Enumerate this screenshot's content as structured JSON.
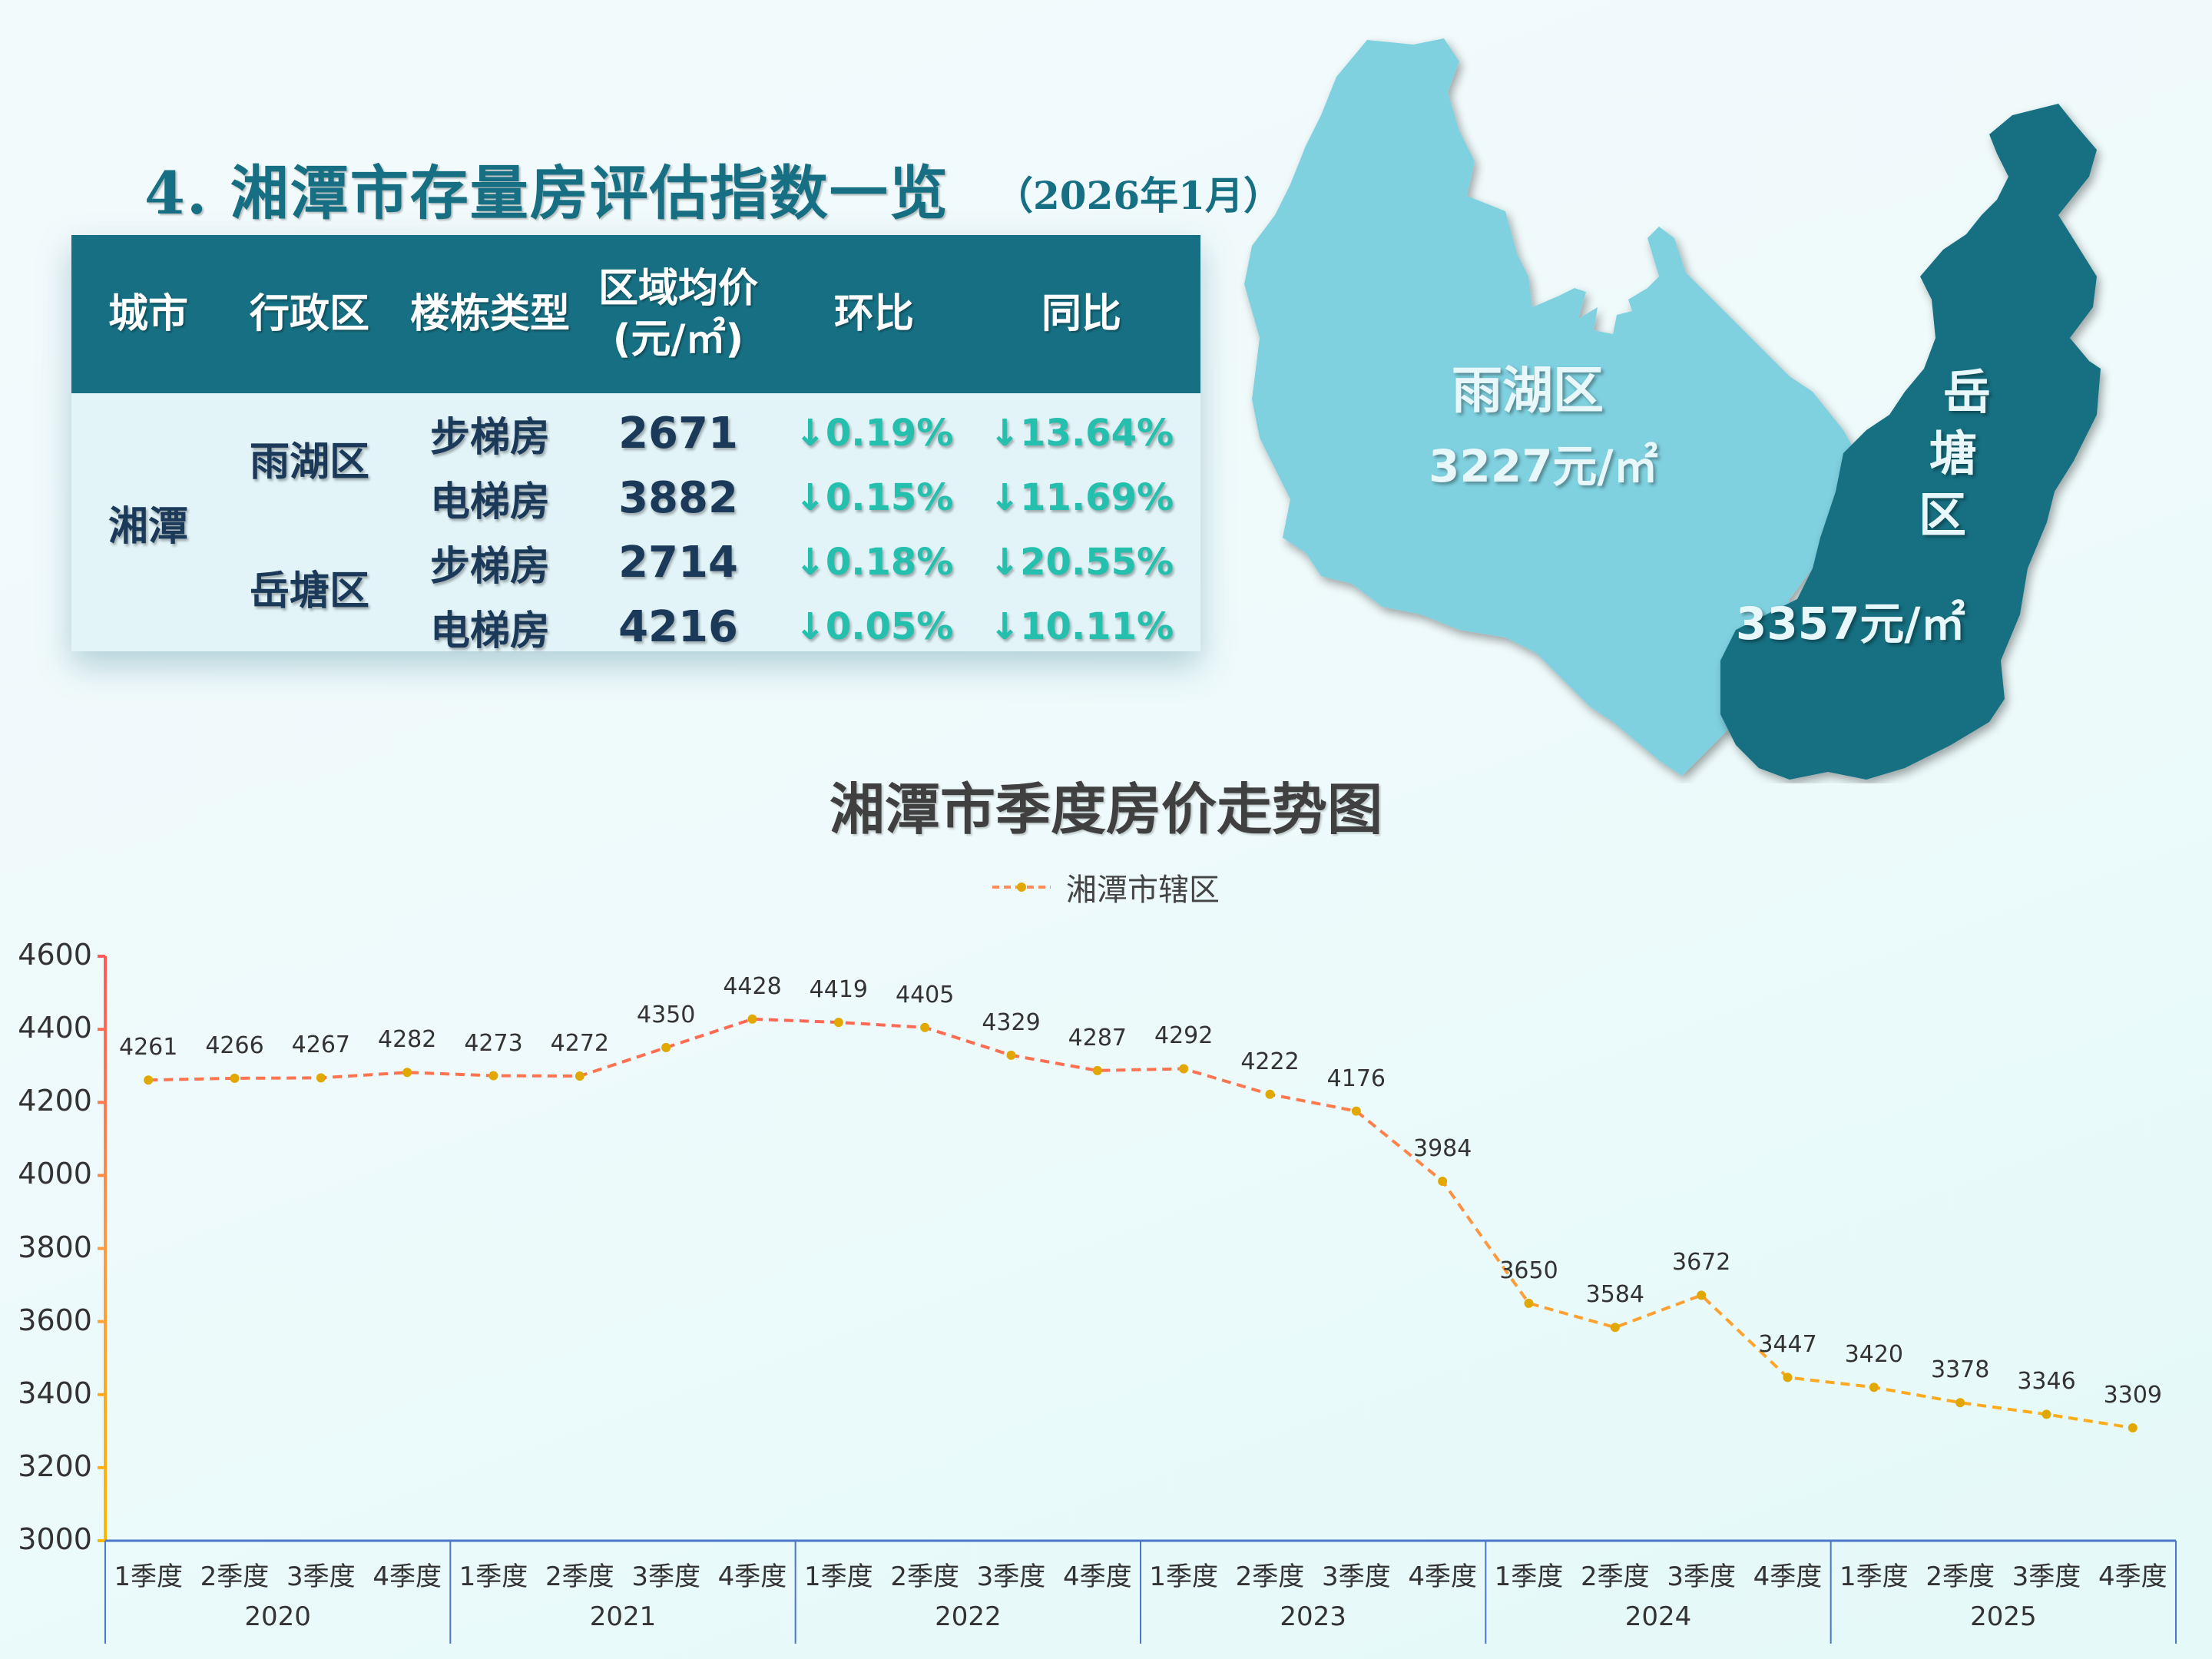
{
  "header": {
    "title": "4. 湘潭市存量房评估指数一览",
    "subtitle": "（2026年1月）"
  },
  "table": {
    "columns": [
      "城市",
      "行政区",
      "楼栋类型",
      "区域均价",
      "(元/㎡)",
      "环比",
      "同比"
    ],
    "city": "湘潭",
    "districts": [
      {
        "name": "雨湖区",
        "rows": [
          {
            "type": "步梯房",
            "price": "2671",
            "mom": "↓0.19%",
            "yoy": "↓13.64%"
          },
          {
            "type": "电梯房",
            "price": "3882",
            "mom": "↓0.15%",
            "yoy": "↓11.69%"
          }
        ]
      },
      {
        "name": "岳塘区",
        "rows": [
          {
            "type": "步梯房",
            "price": "2714",
            "mom": "↓0.18%",
            "yoy": "↓20.55%"
          },
          {
            "type": "电梯房",
            "price": "4216",
            "mom": "↓0.05%",
            "yoy": "↓10.11%"
          }
        ]
      }
    ],
    "colors": {
      "header_bg": "#166f82",
      "body_bg": "#e2f4f8",
      "text": "#1b3a5a",
      "change": "#25bfae"
    }
  },
  "map": {
    "regions": [
      {
        "name": "雨湖区",
        "price": "3227元/㎡",
        "color": "#7fd1e0"
      },
      {
        "name_chars": [
          "岳",
          "塘",
          "区"
        ],
        "name": "岳塘区",
        "price": "3357元/㎡",
        "color": "#166f82"
      }
    ]
  },
  "chart_data": {
    "type": "line",
    "title": "湘潭市季度房价走势图",
    "legend": [
      "湘潭市辖区"
    ],
    "legend_position": "top",
    "xlabel": "",
    "ylabel": "",
    "ylim": [
      3000,
      4600
    ],
    "yticks": [
      "4600",
      "4400",
      "4200",
      "4000",
      "3800",
      "3600",
      "3400",
      "3200",
      "3000"
    ],
    "grid": false,
    "categories_quarter": [
      "1季度",
      "2季度",
      "3季度",
      "4季度"
    ],
    "categories_year": [
      "2020",
      "2021",
      "2022",
      "2023",
      "2024",
      "2025"
    ],
    "categories": [
      "2020 1季度",
      "2020 2季度",
      "2020 3季度",
      "2020 4季度",
      "2021 1季度",
      "2021 2季度",
      "2021 3季度",
      "2021 4季度",
      "2022 1季度",
      "2022 2季度",
      "2022 3季度",
      "2022 4季度",
      "2023 1季度",
      "2023 2季度",
      "2023 3季度",
      "2023 4季度",
      "2024 1季度",
      "2024 2季度",
      "2024 3季度",
      "2024 4季度",
      "2025 1季度",
      "2025 2季度",
      "2025 3季度",
      "2025 4季度"
    ],
    "series": [
      {
        "name": "湘潭市辖区",
        "values": [
          4261,
          4266,
          4267,
          4282,
          4273,
          4272,
          4350,
          4428,
          4419,
          4405,
          4329,
          4287,
          4292,
          4222,
          4176,
          3984,
          3650,
          3584,
          3672,
          3447,
          3420,
          3378,
          3346,
          3309
        ]
      }
    ],
    "colors": {
      "line_top": "#ff5a5a",
      "line_bottom": "#ffb800",
      "marker": "#e0a800",
      "xaxis": "#4a78c8"
    }
  }
}
